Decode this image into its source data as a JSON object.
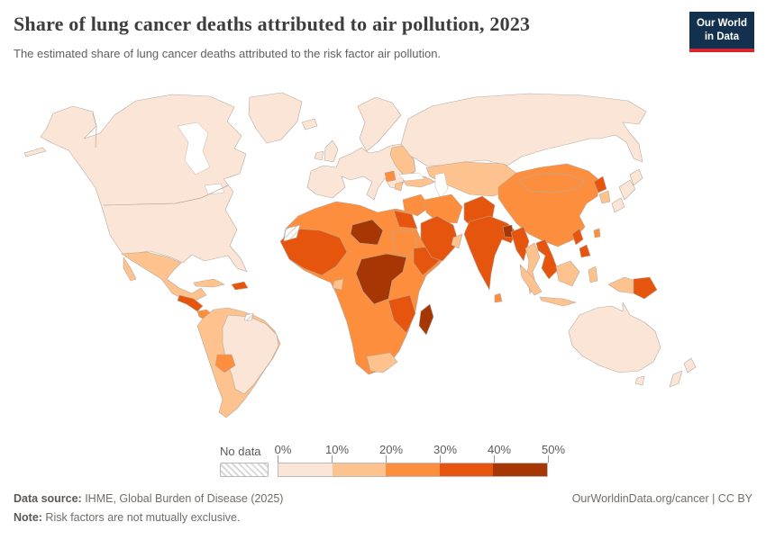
{
  "header": {
    "title": "Share of lung cancer deaths attributed to air pollution, 2023",
    "subtitle": "The estimated share of lung cancer deaths attributed to the risk factor air pollution.",
    "logo_line1": "Our World",
    "logo_line2": "in Data",
    "logo_bg_color": "#13304f",
    "logo_accent_color": "#d7282f"
  },
  "legend": {
    "no_data_label": "No data",
    "tick_labels": [
      "0%",
      "10%",
      "20%",
      "30%",
      "40%",
      "50%"
    ]
  },
  "footer": {
    "source_label": "Data source:",
    "source_text": " IHME, Global Burden of Disease (2025)",
    "note_label": "Note:",
    "note_text": " Risk factors are not mutually exclusive.",
    "credit_text": "OurWorldinData.org/cancer | CC BY"
  },
  "chart_data": {
    "type": "choropleth",
    "title": "Share of lung cancer deaths attributed to air pollution, 2023",
    "unit": "%",
    "year": 2023,
    "legend_position": "bottom",
    "value_range": [
      0,
      50
    ],
    "no_data_label": "No data",
    "legend_bins": [
      {
        "label": "0-10%",
        "color": "#fbe5d6"
      },
      {
        "label": "10-20%",
        "color": "#fdc28e"
      },
      {
        "label": "20-30%",
        "color": "#fd8e3d"
      },
      {
        "label": "30-40%",
        "color": "#e6550d"
      },
      {
        "label": "40-50%",
        "color": "#a63603"
      }
    ],
    "regions": {
      "north-america": "0-10%",
      "greenland": "0-10%",
      "iceland": "0-10%",
      "aleutians": "0-10%",
      "mexico": "10-20%",
      "baja-california": "10-20%",
      "central-america-north": "30-40%",
      "central-america-south": "20-30%",
      "cuba": "10-20%",
      "hispaniola": "30-40%",
      "south-america": "10-20%",
      "brazil": "0-10%",
      "bolivia": "20-30%",
      "french-guiana": "No data",
      "europe": "0-10%",
      "scandinavia": "0-10%",
      "united-kingdom": "0-10%",
      "ireland": "0-10%",
      "eastern-europe": "10-20%",
      "balkans": "20-30%",
      "greece": "10-20%",
      "turkey": "10-20%",
      "russia": "0-10%",
      "central-asia": "10-20%",
      "levant-iraq": "20-30%",
      "iran": "20-30%",
      "arabia": "30-40%",
      "oman": "10-20%",
      "afghanistan-pakistan": "30-40%",
      "india": "30-40%",
      "bangladesh": "40-50%",
      "sri-lanka": "20-30%",
      "china-mongolia": "20-30%",
      "north-korea": "30-40%",
      "south-korea": "10-20%",
      "japan-north": "0-10%",
      "japan-central": "0-10%",
      "japan-south": "0-10%",
      "myanmar": "30-40%",
      "thailand": "10-20%",
      "vietnam-laos": "30-40%",
      "sumatra": "10-20%",
      "java": "10-20%",
      "borneo": "10-20%",
      "sulawesi": "10-20%",
      "west-new-guinea": "10-20%",
      "papua-new-guinea": "30-40%",
      "philippines-north": "30-40%",
      "philippines-south": "30-40%",
      "taiwan": "20-30%",
      "australia": "0-10%",
      "tasmania": "0-10%",
      "new-zealand-north": "0-10%",
      "new-zealand-south": "0-10%",
      "africa": "20-30%",
      "western-sahara": "No data",
      "west-africa": "30-40%",
      "niger": "40-50%",
      "sudan": "20-30%",
      "egypt": "30-40%",
      "horn-of-africa": "30-40%",
      "central-africa": "40-50%",
      "southeast-africa": "30-40%",
      "south-africa": "10-20%",
      "gabon": "10-20%",
      "madagascar": "40-50%"
    }
  }
}
